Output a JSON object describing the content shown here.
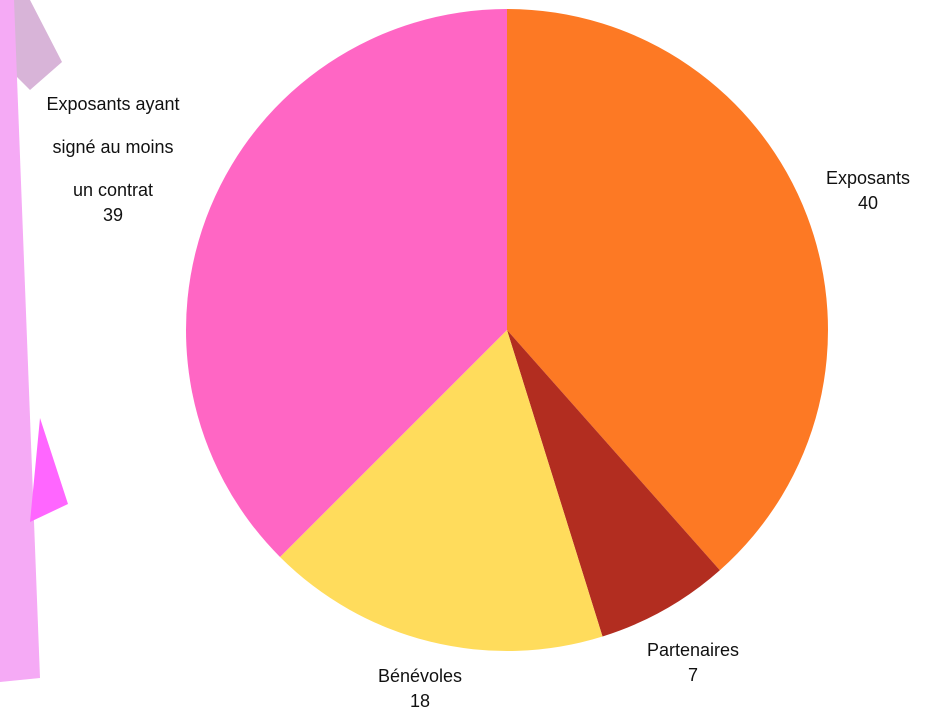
{
  "chart_data": {
    "type": "pie",
    "title": "",
    "start_angle": "top",
    "direction": "clockwise",
    "legend": "none",
    "slices": [
      {
        "label": "Exposants",
        "value": 40,
        "color": "#fd7924"
      },
      {
        "label": "Partenaires",
        "value": 7,
        "color": "#b22d20"
      },
      {
        "label": "Bénévoles",
        "value": 18,
        "color": "#ffdc5c"
      },
      {
        "label": "Exposants ayant signé au moins un contrat",
        "value": 39,
        "color": "#ff66c4"
      }
    ],
    "decoration_colors": [
      "#d8b4d8",
      "#f5aaf5",
      "#ff66ff"
    ]
  }
}
